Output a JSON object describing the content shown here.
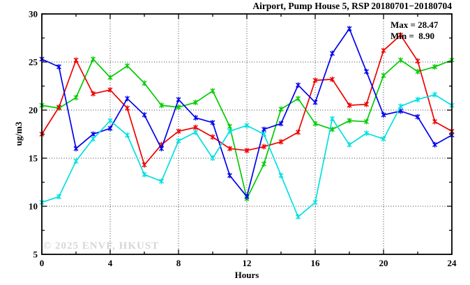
{
  "title": "Airport, Pump House 5, RSP 20180701−20180704",
  "annotations": {
    "max_label": "Max = 28.47",
    "min_label": "Min =  8.90"
  },
  "watermark": "© 2025 ENVF, HKUST",
  "chart_data": {
    "type": "line",
    "title": "Airport, Pump House 5, RSP 20180701−20180704",
    "xlabel": "Hours",
    "ylabel": "ug/m3",
    "xlim": [
      0,
      24
    ],
    "ylim": [
      5,
      30
    ],
    "xticks_major": [
      0,
      4,
      8,
      12,
      16,
      20,
      24
    ],
    "xticks_minor": [
      2,
      6,
      10,
      14,
      18,
      22
    ],
    "yticks_major": [
      5,
      10,
      15,
      20,
      25,
      30
    ],
    "yticks_minor": [
      7.5,
      12.5,
      17.5,
      22.5,
      27.5
    ],
    "grid": {
      "style": "dotted",
      "x_at": [
        4,
        8,
        12,
        16,
        20
      ],
      "y_at": [
        10,
        15,
        20,
        25
      ]
    },
    "legend_position": "none",
    "max": 28.47,
    "min": 8.9,
    "x": [
      0,
      1,
      2,
      3,
      4,
      5,
      6,
      7,
      8,
      9,
      10,
      11,
      12,
      13,
      14,
      15,
      16,
      17,
      18,
      19,
      20,
      21,
      22,
      23,
      24
    ],
    "series": [
      {
        "color": "#00cc00",
        "values": [
          20.5,
          20.2,
          21.3,
          25.3,
          23.4,
          24.6,
          22.8,
          20.5,
          20.3,
          20.8,
          22.0,
          18.3,
          10.8,
          14.4,
          20.1,
          21.2,
          18.6,
          18.0,
          18.9,
          18.8,
          23.6,
          25.2,
          24.0,
          24.5,
          25.2
        ]
      },
      {
        "color": "#ee0000",
        "values": [
          17.5,
          20.3,
          25.2,
          21.7,
          22.1,
          20.2,
          14.3,
          16.4,
          17.8,
          18.2,
          17.2,
          16.0,
          15.8,
          16.2,
          16.7,
          17.7,
          23.1,
          23.2,
          20.5,
          20.6,
          26.2,
          27.8,
          25.1,
          18.8,
          17.8
        ]
      },
      {
        "color": "#0000ee",
        "values": [
          25.3,
          24.5,
          16.0,
          17.5,
          18.1,
          21.2,
          19.5,
          16.0,
          21.1,
          19.2,
          18.7,
          13.2,
          11.0,
          18.0,
          18.6,
          22.6,
          20.8,
          25.9,
          28.47,
          24.0,
          19.5,
          19.9,
          19.3,
          16.4,
          17.4
        ]
      },
      {
        "color": "#00e0e0",
        "values": [
          10.4,
          11.0,
          14.7,
          17.0,
          18.9,
          17.4,
          13.3,
          12.6,
          16.8,
          17.7,
          15.0,
          17.8,
          18.4,
          17.5,
          13.2,
          8.9,
          10.4,
          19.1,
          16.4,
          17.6,
          17.0,
          20.4,
          21.1,
          21.6,
          20.5
        ]
      }
    ]
  }
}
